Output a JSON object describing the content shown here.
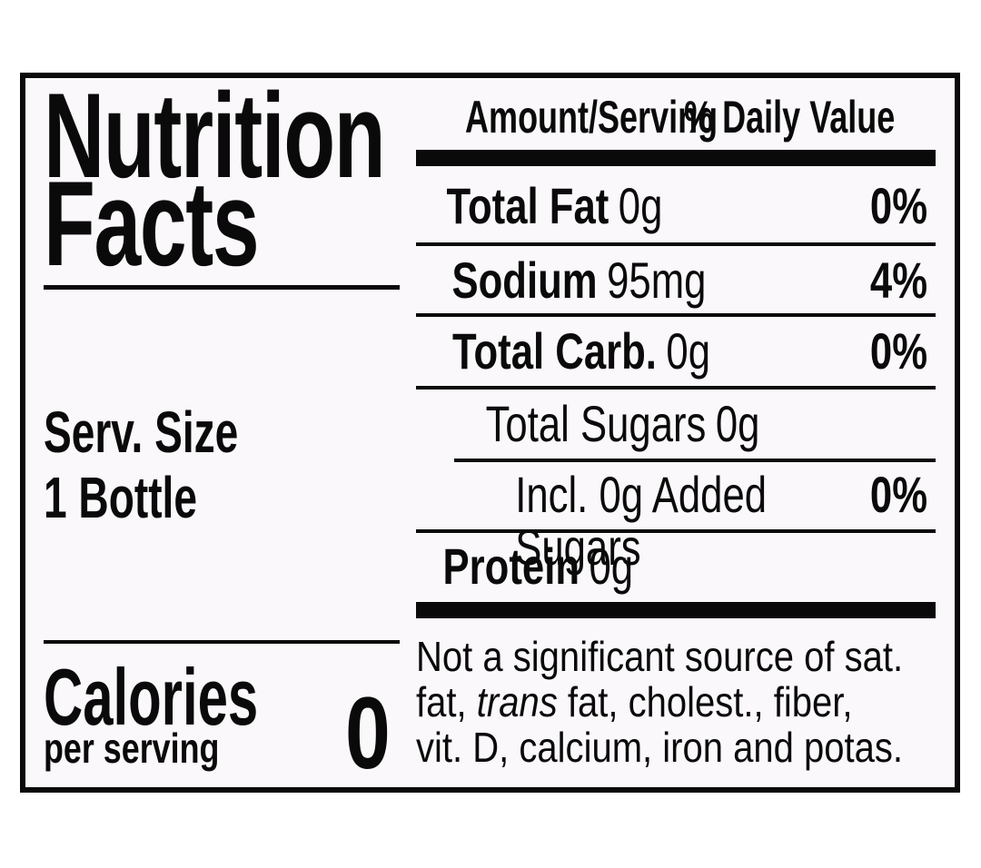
{
  "colors": {
    "text": "#0a0a0a",
    "border": "#0a0a0a",
    "label_background": "#faf8fb",
    "page_background": "#ffffff"
  },
  "label": {
    "title_line1": "Nutrition",
    "title_line2": "Facts",
    "serving_size_label": "Serv. Size",
    "serving_size_value": "1 Bottle",
    "calories_label": "Calories",
    "calories_sublabel": "per serving",
    "calories_value": "0",
    "column_headers": {
      "amount": "Amount/Serving",
      "daily_value": "% Daily Value"
    },
    "rows": [
      {
        "name": "Total Fat",
        "amount": "0g",
        "daily_value": "0%"
      },
      {
        "name": "Sodium",
        "amount": "95mg",
        "daily_value": "4%"
      },
      {
        "name": "Total Carb.",
        "amount": "0g",
        "daily_value": "0%"
      },
      {
        "name": "Total Sugars",
        "amount": "0g",
        "daily_value": ""
      },
      {
        "name": "Incl. 0g Added Sugars",
        "amount": "",
        "daily_value": "0%"
      },
      {
        "name": "Protein",
        "amount": "0g",
        "daily_value": ""
      }
    ],
    "footnote": {
      "line1": "Not a significant source of sat.",
      "line2_pre": "fat, ",
      "line2_italic": "trans",
      "line2_post": " fat, cholest., fiber,",
      "line3": "vit. D, calcium, iron and potas."
    }
  }
}
